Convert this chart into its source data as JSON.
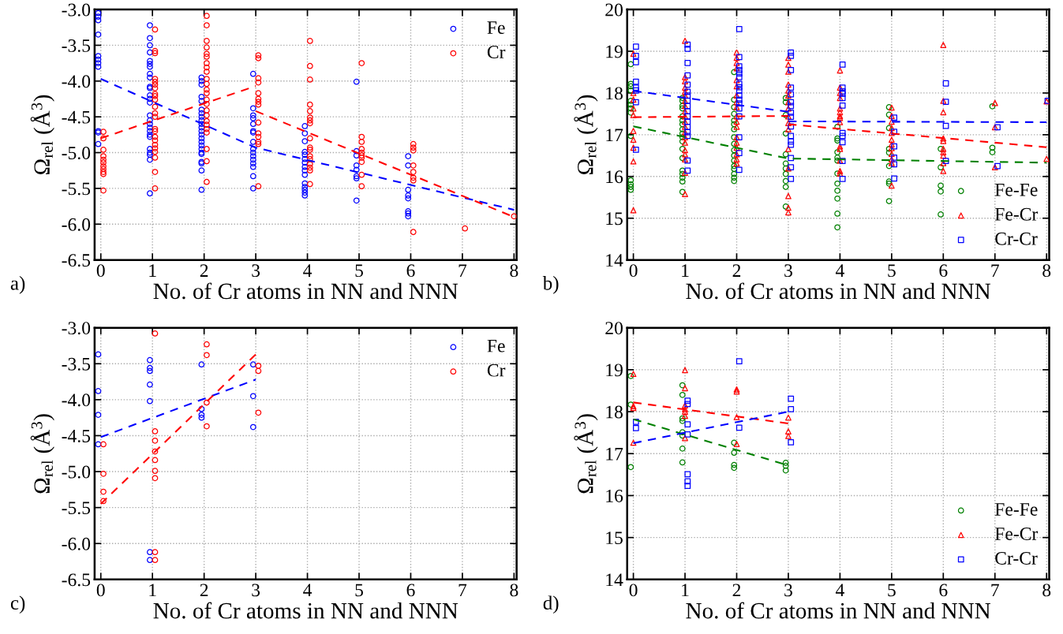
{
  "chart_data": [
    {
      "type": "scatter",
      "xlabel": "No. of Cr atoms in NN and NNN",
      "ylabel": "Ω$_{rel}$ (Å$^{3}$)",
      "annotations": [
        "a)"
      ],
      "xlim": [
        -0.12,
        8.05
      ],
      "xticks": [
        0,
        1,
        2,
        3,
        4,
        5,
        6,
        7,
        8
      ],
      "ylim": [
        -6.5,
        -3.0
      ],
      "yticks": [
        {
          "value": -6.5,
          "label": "-6.5"
        },
        {
          "value": -6.0,
          "label": "-6.0"
        },
        {
          "value": -5.5,
          "label": "-5.5"
        },
        {
          "value": -5.0,
          "label": "-5.0"
        },
        {
          "value": -4.5,
          "label": "-4.5"
        },
        {
          "value": -4.0,
          "label": "-4.0"
        },
        {
          "value": -3.5,
          "label": "-3.5"
        },
        {
          "value": -3.0,
          "label": "-3.0"
        }
      ],
      "grid": true,
      "legend": "top right",
      "series": [
        {
          "name": "Fe",
          "color": "#0000ff",
          "marker": "circle",
          "x": [
            -0.05,
            -0.05,
            -0.05,
            -0.05,
            -0.05,
            -0.05,
            -0.05,
            -0.05,
            -0.05,
            -0.05,
            -0.05,
            0.95,
            0.95,
            0.95,
            0.95,
            0.95,
            0.95,
            0.95,
            0.95,
            0.95,
            0.95,
            0.95,
            0.95,
            0.95,
            0.95,
            0.95,
            0.95,
            0.95,
            0.95,
            0.95,
            0.95,
            0.95,
            0.95,
            0.95,
            0.95,
            0.95,
            0.95,
            1.95,
            1.95,
            1.95,
            1.95,
            1.95,
            1.95,
            1.95,
            1.95,
            1.95,
            1.95,
            1.95,
            1.95,
            1.95,
            1.95,
            1.95,
            1.95,
            1.95,
            1.95,
            1.95,
            1.95,
            1.95,
            1.95,
            1.95,
            2.95,
            2.95,
            2.95,
            2.95,
            2.95,
            2.95,
            2.95,
            2.95,
            2.95,
            2.95,
            2.95,
            2.95,
            2.95,
            2.95,
            2.95,
            2.95,
            3.95,
            3.95,
            3.95,
            3.95,
            3.95,
            3.95,
            3.95,
            3.95,
            3.95,
            3.95,
            3.95,
            3.95,
            3.95,
            3.95,
            3.95,
            4.95,
            4.95,
            4.95,
            4.95,
            4.95,
            4.95,
            4.95,
            4.95,
            5.95,
            5.95,
            5.95,
            5.95,
            5.95,
            5.95,
            5.95,
            5.95
          ],
          "values": [
            -3.05,
            -3.1,
            -3.15,
            -3.35,
            -3.65,
            -3.7,
            -3.75,
            -3.8,
            -4.7,
            -4.72,
            -4.88,
            -3.22,
            -3.4,
            -3.5,
            -3.6,
            -3.72,
            -3.76,
            -3.8,
            -3.9,
            -3.95,
            -4.08,
            -4.1,
            -4.2,
            -4.25,
            -4.3,
            -4.48,
            -4.55,
            -4.6,
            -4.65,
            -4.7,
            -4.75,
            -4.78,
            -4.95,
            -5.0,
            -5.03,
            -5.1,
            -5.57,
            -3.95,
            -4.0,
            -4.05,
            -4.22,
            -4.28,
            -4.4,
            -4.45,
            -4.5,
            -4.55,
            -4.6,
            -4.65,
            -4.7,
            -4.75,
            -4.8,
            -4.85,
            -4.9,
            -4.95,
            -5.0,
            -5.02,
            -5.13,
            -5.15,
            -5.25,
            -5.52,
            -3.9,
            -4.38,
            -4.48,
            -4.52,
            -4.6,
            -4.7,
            -4.72,
            -4.85,
            -4.95,
            -5.0,
            -5.05,
            -5.1,
            -5.15,
            -5.2,
            -5.33,
            -5.5,
            -4.63,
            -4.73,
            -4.84,
            -4.99,
            -5.03,
            -5.09,
            -5.14,
            -5.2,
            -5.25,
            -5.31,
            -5.43,
            -5.48,
            -5.52,
            -5.56,
            -5.6,
            -4.01,
            -4.98,
            -5.04,
            -5.18,
            -5.24,
            -5.33,
            -5.36,
            -5.67,
            -5.05,
            -5.18,
            -5.52,
            -5.6,
            -5.64,
            -5.82,
            -5.85,
            -5.89
          ]
        },
        {
          "name": "Cr",
          "color": "#ff0000",
          "marker": "circle",
          "x": [
            0.05,
            0.05,
            0.05,
            0.05,
            0.05,
            0.05,
            0.05,
            0.05,
            0.05,
            0.05,
            0.05,
            1.05,
            1.05,
            1.05,
            1.05,
            1.05,
            1.05,
            1.05,
            1.05,
            1.05,
            1.05,
            1.05,
            1.05,
            1.05,
            1.05,
            1.05,
            1.05,
            1.05,
            1.05,
            1.05,
            1.05,
            1.05,
            1.05,
            1.05,
            2.05,
            2.05,
            2.05,
            2.05,
            2.05,
            2.05,
            2.05,
            2.05,
            2.05,
            2.05,
            2.05,
            2.05,
            2.05,
            2.05,
            2.05,
            2.05,
            2.05,
            2.05,
            2.05,
            2.05,
            2.05,
            2.05,
            2.05,
            2.05,
            3.05,
            3.05,
            3.05,
            3.05,
            3.05,
            3.05,
            3.05,
            3.05,
            3.05,
            3.05,
            3.05,
            3.05,
            3.05,
            3.05,
            4.05,
            4.05,
            4.05,
            4.05,
            4.05,
            4.05,
            4.05,
            4.05,
            4.05,
            4.05,
            4.05,
            4.05,
            4.05,
            4.05,
            4.05,
            4.05,
            4.05,
            5.05,
            5.05,
            5.05,
            5.05,
            5.05,
            5.05,
            5.05,
            5.05,
            5.05,
            5.05,
            6.05,
            6.05,
            6.05,
            6.05,
            6.05,
            6.05,
            6.05,
            6.05,
            7.05,
            8.0
          ],
          "values": [
            -4.71,
            -4.8,
            -4.96,
            -5.05,
            -5.1,
            -5.14,
            -5.19,
            -5.23,
            -5.27,
            -5.3,
            -5.53,
            -3.28,
            -3.58,
            -3.61,
            -3.97,
            -4.01,
            -4.05,
            -4.1,
            -4.18,
            -4.21,
            -4.26,
            -4.36,
            -4.45,
            -4.5,
            -4.67,
            -4.7,
            -4.78,
            -4.83,
            -4.89,
            -4.94,
            -4.99,
            -5.07,
            -5.27,
            -5.5,
            -3.09,
            -3.22,
            -3.44,
            -3.53,
            -3.62,
            -3.66,
            -3.75,
            -3.81,
            -3.87,
            -3.97,
            -4.04,
            -4.12,
            -4.17,
            -4.26,
            -4.32,
            -4.41,
            -4.48,
            -4.56,
            -4.61,
            -4.67,
            -4.72,
            -4.95,
            -5.12,
            -5.41,
            -3.64,
            -3.68,
            -3.96,
            -4.02,
            -4.17,
            -4.25,
            -4.29,
            -4.33,
            -4.58,
            -4.73,
            -4.78,
            -4.85,
            -4.88,
            -5.47,
            -3.44,
            -3.79,
            -3.98,
            -4.33,
            -4.42,
            -4.51,
            -4.55,
            -4.59,
            -4.8,
            -4.93,
            -4.96,
            -5.05,
            -5.09,
            -5.16,
            -5.21,
            -5.25,
            -5.44,
            -3.75,
            -4.78,
            -4.85,
            -4.95,
            -5.0,
            -5.04,
            -5.07,
            -5.13,
            -5.31,
            -5.47,
            -4.88,
            -4.93,
            -4.97,
            -5.18,
            -5.27,
            -5.35,
            -5.39,
            -6.11,
            -6.06,
            -5.89
          ]
        },
        {
          "type": "line",
          "color": "#0000ff",
          "line_style": "dashed",
          "x": [
            0,
            3,
            8
          ],
          "values": [
            -3.97,
            -4.93,
            -5.8
          ]
        },
        {
          "type": "line",
          "color": "#ff0000",
          "line_style": "dashed",
          "x": [
            0,
            3
          ],
          "values": [
            -4.8,
            -4.07
          ]
        },
        {
          "type": "line",
          "color": "#ff0000",
          "line_style": "dashed",
          "x": [
            3,
            8
          ],
          "values": [
            -4.42,
            -5.9
          ]
        }
      ]
    },
    {
      "type": "scatter",
      "xlabel": "No. of Cr atoms in NN and NNN",
      "ylabel": "Ω$_{rel}$ (Å$^{3}$)",
      "annotations": [
        "b)"
      ],
      "xlim": [
        -0.12,
        8.05
      ],
      "xticks": [
        0,
        1,
        2,
        3,
        4,
        5,
        6,
        7,
        8
      ],
      "ylim": [
        14,
        20
      ],
      "yticks": [
        14,
        15,
        16,
        17,
        18,
        19,
        20
      ],
      "grid": true,
      "legend": "bottom right",
      "series": [
        {
          "name": "Fe-Fe",
          "color": "#008000",
          "marker": "circle",
          "x": [
            -0.05,
            -0.05,
            -0.05,
            -0.05,
            -0.05,
            -0.05,
            -0.05,
            -0.05,
            -0.05,
            -0.05,
            -0.05,
            -0.05,
            -0.05,
            0.95,
            0.95,
            0.95,
            0.95,
            0.95,
            0.95,
            0.95,
            0.95,
            0.95,
            0.95,
            0.95,
            0.95,
            0.95,
            0.95,
            0.95,
            0.95,
            0.95,
            0.95,
            1.95,
            1.95,
            1.95,
            1.95,
            1.95,
            1.95,
            1.95,
            1.95,
            1.95,
            1.95,
            1.95,
            1.95,
            1.95,
            1.95,
            1.95,
            1.95,
            1.95,
            2.95,
            2.95,
            2.95,
            2.95,
            2.95,
            2.95,
            2.95,
            2.95,
            2.95,
            2.95,
            2.95,
            3.95,
            3.95,
            3.95,
            3.95,
            3.95,
            3.95,
            3.95,
            3.95,
            3.95,
            3.95,
            3.95,
            3.95,
            4.95,
            4.95,
            4.95,
            4.95,
            4.95,
            4.95,
            4.95,
            4.95,
            4.95,
            5.95,
            5.95,
            5.95,
            5.95,
            5.95,
            6.95,
            6.95,
            6.95
          ],
          "values": [
            18.69,
            18.22,
            18.16,
            18.06,
            17.81,
            17.72,
            17.63,
            17.53,
            16.97,
            15.91,
            15.81,
            15.75,
            15.68,
            17.88,
            17.81,
            17.69,
            17.63,
            17.44,
            17.34,
            17.25,
            17.13,
            17.03,
            16.94,
            16.84,
            16.66,
            16.44,
            16.14,
            16.06,
            15.97,
            15.88,
            15.63,
            18.5,
            17.84,
            17.66,
            17.5,
            17.34,
            17.25,
            17.13,
            16.94,
            16.78,
            16.63,
            16.5,
            16.38,
            16.25,
            16.18,
            16.06,
            15.97,
            15.89,
            17.88,
            17.78,
            17.47,
            17.03,
            16.53,
            16.31,
            16.19,
            16.06,
            15.89,
            15.75,
            15.28,
            17.19,
            16.91,
            16.86,
            16.58,
            16.45,
            16.38,
            16.07,
            15.83,
            15.66,
            15.47,
            15.11,
            14.78,
            17.66,
            17.48,
            17.16,
            16.66,
            16.57,
            16.25,
            15.88,
            15.83,
            15.41,
            16.66,
            16.22,
            15.78,
            15.64,
            15.09,
            17.68,
            16.69,
            16.58
          ]
        },
        {
          "name": "Fe-Cr",
          "color": "#ff0000",
          "marker": "triangle",
          "x": [
            0,
            0,
            0,
            0,
            0,
            0,
            0,
            0,
            0,
            0,
            1,
            1,
            1,
            1,
            1,
            1,
            1,
            1,
            1,
            1,
            1,
            1,
            1,
            1,
            1,
            1,
            1,
            1,
            1,
            1,
            2,
            2,
            2,
            2,
            2,
            2,
            2,
            2,
            2,
            2,
            2,
            2,
            2,
            2,
            2,
            2,
            2,
            2,
            3,
            3,
            3,
            3,
            3,
            3,
            3,
            3,
            3,
            3,
            3,
            3,
            3,
            3,
            3,
            3,
            4,
            4,
            4,
            4,
            4,
            4,
            4,
            4,
            4,
            4,
            4,
            4,
            4,
            4,
            5,
            5,
            5,
            5,
            5,
            5,
            5,
            5,
            5,
            5,
            5,
            5,
            6,
            6,
            6,
            6,
            6,
            6,
            6,
            6,
            6,
            6,
            7,
            7,
            7,
            8,
            8
          ],
          "values": [
            18.94,
            18.0,
            17.84,
            17.63,
            17.47,
            17.09,
            16.88,
            16.69,
            16.36,
            15.19,
            19.25,
            18.38,
            18.28,
            18.13,
            18.03,
            17.94,
            17.81,
            17.69,
            17.56,
            17.44,
            17.31,
            17.19,
            17.06,
            16.94,
            16.81,
            16.63,
            16.53,
            16.41,
            16.09,
            15.58,
            18.97,
            18.84,
            18.72,
            18.59,
            18.31,
            18.16,
            17.94,
            17.78,
            17.66,
            17.44,
            17.31,
            17.19,
            16.94,
            16.81,
            16.69,
            16.53,
            16.41,
            16.31,
            18.84,
            18.68,
            18.51,
            18.2,
            18.06,
            17.94,
            17.78,
            17.63,
            17.44,
            17.28,
            17.13,
            16.66,
            16.19,
            15.53,
            15.25,
            15.14,
            18.54,
            18.13,
            18.0,
            17.88,
            17.63,
            17.54,
            17.45,
            17.4,
            17.3,
            16.72,
            16.66,
            16.38,
            16.13,
            16.07,
            17.65,
            17.45,
            17.31,
            17.16,
            17.04,
            16.88,
            16.77,
            16.68,
            16.54,
            16.41,
            16.32,
            15.78,
            19.15,
            17.81,
            17.54,
            16.91,
            16.85,
            16.66,
            16.58,
            16.5,
            16.32,
            16.13,
            17.76,
            17.18,
            16.22,
            17.8,
            16.42
          ]
        },
        {
          "name": "Cr-Cr",
          "color": "#0000ff",
          "marker": "square",
          "x": [
            0.05,
            0.05,
            0.05,
            0.05,
            0.05,
            0.05,
            0.05,
            0.05,
            1.05,
            1.05,
            1.05,
            1.05,
            1.05,
            1.05,
            1.05,
            1.05,
            1.05,
            1.05,
            1.05,
            1.05,
            1.05,
            1.05,
            1.05,
            1.05,
            1.05,
            2.05,
            2.05,
            2.05,
            2.05,
            2.05,
            2.05,
            2.05,
            2.05,
            2.05,
            2.05,
            2.05,
            2.05,
            2.05,
            2.05,
            2.05,
            2.05,
            2.05,
            3.05,
            3.05,
            3.05,
            3.05,
            3.05,
            3.05,
            3.05,
            3.05,
            3.05,
            3.05,
            3.05,
            3.05,
            3.05,
            3.05,
            3.05,
            3.05,
            4.05,
            4.05,
            4.05,
            4.05,
            4.05,
            4.05,
            4.05,
            4.05,
            4.05,
            4.05,
            4.05,
            5.05,
            5.05,
            5.05,
            5.05,
            5.05,
            5.05,
            6.05,
            6.05,
            6.05,
            6.05,
            7.05,
            7.05,
            8.02
          ],
          "values": [
            19.11,
            18.89,
            18.74,
            18.27,
            18.13,
            18.06,
            17.78,
            16.64,
            19.16,
            19.06,
            18.72,
            18.42,
            18.2,
            18.03,
            17.94,
            17.81,
            17.69,
            17.56,
            17.44,
            17.31,
            17.19,
            17.06,
            16.97,
            16.38,
            16.14,
            19.53,
            18.86,
            18.64,
            18.55,
            18.47,
            18.38,
            18.22,
            18.14,
            18.06,
            17.94,
            17.84,
            17.75,
            17.63,
            17.44,
            16.94,
            16.56,
            16.16,
            18.97,
            18.89,
            18.55,
            18.13,
            17.97,
            17.78,
            17.69,
            17.53,
            17.43,
            17.2,
            16.97,
            16.84,
            16.76,
            16.44,
            16.22,
            15.94,
            18.68,
            18.13,
            18.04,
            17.98,
            17.88,
            17.7,
            17.04,
            16.97,
            16.82,
            16.37,
            15.94,
            17.41,
            17.07,
            16.72,
            16.45,
            16.29,
            15.95,
            18.23,
            17.79,
            17.21,
            16.37,
            17.18,
            16.25,
            17.81
          ]
        },
        {
          "type": "line",
          "color": "#008000",
          "line_style": "dashed",
          "x": [
            0,
            3,
            8
          ],
          "values": [
            17.2,
            16.43,
            16.33
          ]
        },
        {
          "type": "line",
          "color": "#ff0000",
          "line_style": "dashed",
          "x": [
            0,
            3
          ],
          "values": [
            17.42,
            17.45
          ]
        },
        {
          "type": "line",
          "color": "#ff0000",
          "line_style": "dashed",
          "x": [
            3,
            8
          ],
          "values": [
            17.25,
            16.7
          ]
        },
        {
          "type": "line",
          "color": "#0000ff",
          "line_style": "dashed",
          "x": [
            0,
            3
          ],
          "values": [
            18.05,
            17.55
          ]
        },
        {
          "type": "line",
          "color": "#0000ff",
          "line_style": "dashed",
          "x": [
            3,
            8
          ],
          "values": [
            17.32,
            17.3
          ]
        }
      ]
    },
    {
      "type": "scatter",
      "xlabel": "No. of Cr atoms in NN and NNN",
      "ylabel": "Ω$_{rel}$ (Å$^{3}$)",
      "annotations": [
        "c)"
      ],
      "xlim": [
        -0.12,
        8.05
      ],
      "xticks": [
        0,
        1,
        2,
        3,
        4,
        5,
        6,
        7,
        8
      ],
      "ylim": [
        -6.5,
        -3.0
      ],
      "yticks": [
        {
          "value": -6.5,
          "label": "-6.5"
        },
        {
          "value": -6.0,
          "label": "-6.0"
        },
        {
          "value": -5.5,
          "label": "-5.5"
        },
        {
          "value": -5.0,
          "label": "-5.0"
        },
        {
          "value": -4.5,
          "label": "-4.5"
        },
        {
          "value": -4.0,
          "label": "-4.0"
        },
        {
          "value": -3.5,
          "label": "-3.5"
        },
        {
          "value": -3.0,
          "label": "-3.0"
        }
      ],
      "grid": true,
      "legend": "top right",
      "series": [
        {
          "name": "Fe",
          "color": "#0000ff",
          "marker": "circle",
          "x": [
            -0.05,
            -0.05,
            -0.05,
            -0.05,
            0.95,
            0.95,
            0.95,
            0.95,
            0.95,
            0.95,
            0.95,
            1.95,
            1.95,
            1.95,
            1.95,
            2.95,
            2.95,
            2.95
          ],
          "values": [
            -3.37,
            -3.88,
            -4.21,
            -4.62,
            -3.45,
            -3.56,
            -3.6,
            -3.79,
            -4.02,
            -6.12,
            -6.23,
            -3.51,
            -4.13,
            -4.21,
            -4.25,
            -3.51,
            -3.95,
            -4.38
          ]
        },
        {
          "name": "Cr",
          "color": "#ff0000",
          "marker": "circle",
          "x": [
            0.05,
            0.05,
            0.05,
            0.05,
            1.05,
            1.05,
            1.05,
            1.05,
            1.05,
            1.05,
            1.05,
            1.05,
            1.05,
            2.05,
            2.05,
            2.05,
            2.05,
            3.05,
            3.05,
            3.05
          ],
          "values": [
            -4.62,
            -5.03,
            -5.28,
            -5.41,
            -3.08,
            -4.44,
            -4.57,
            -4.72,
            -4.84,
            -4.99,
            -5.09,
            -6.12,
            -6.23,
            -3.23,
            -3.38,
            -4.04,
            -4.37,
            -3.53,
            -3.6,
            -4.18
          ]
        },
        {
          "type": "line",
          "color": "#0000ff",
          "line_style": "dashed",
          "x": [
            0,
            3
          ],
          "values": [
            -4.52,
            -3.72
          ]
        },
        {
          "type": "line",
          "color": "#ff0000",
          "line_style": "dashed",
          "x": [
            0,
            3
          ],
          "values": [
            -5.45,
            -3.37
          ]
        }
      ]
    },
    {
      "type": "scatter",
      "xlabel": "No. of Cr atoms in NN and NNN",
      "ylabel": "Ω$_{rel}$ (Å$^{3}$)",
      "annotations": [
        "d)"
      ],
      "xlim": [
        -0.12,
        8.05
      ],
      "xticks": [
        0,
        1,
        2,
        3,
        4,
        5,
        6,
        7,
        8
      ],
      "ylim": [
        14,
        20
      ],
      "yticks": [
        14,
        15,
        16,
        17,
        18,
        19,
        20
      ],
      "grid": true,
      "legend": "bottom right",
      "series": [
        {
          "name": "Fe-Fe",
          "color": "#008000",
          "marker": "circle",
          "x": [
            -0.05,
            -0.05,
            -0.05,
            0.95,
            0.95,
            0.95,
            0.95,
            0.95,
            0.95,
            0.95,
            0.95,
            1.95,
            1.95,
            1.95,
            1.95,
            2.95,
            2.95,
            2.95
          ],
          "values": [
            18.85,
            18.17,
            16.68,
            18.63,
            18.4,
            17.84,
            17.78,
            17.51,
            17.43,
            17.12,
            16.79,
            17.26,
            17.02,
            16.73,
            16.66,
            16.78,
            16.71,
            16.6
          ]
        },
        {
          "name": "Fe-Cr",
          "color": "#ff0000",
          "marker": "triangle",
          "x": [
            0,
            0,
            0,
            0,
            1,
            1,
            1,
            1,
            1,
            1,
            1,
            2,
            2,
            2,
            2,
            3,
            3,
            3
          ],
          "values": [
            18.9,
            18.13,
            18.09,
            17.26,
            18.99,
            18.56,
            18.15,
            18.06,
            18.0,
            17.9,
            17.37,
            18.53,
            18.48,
            17.87,
            17.23,
            17.86,
            17.53,
            17.42
          ]
        },
        {
          "name": "Cr-Cr",
          "color": "#0000ff",
          "marker": "square",
          "x": [
            0.05,
            0.05,
            1.05,
            1.05,
            1.05,
            1.05,
            1.05,
            1.05,
            1.05,
            2.05,
            2.05,
            3.05,
            3.05,
            3.05
          ],
          "values": [
            17.76,
            17.61,
            18.26,
            18.18,
            17.7,
            17.46,
            16.51,
            16.34,
            16.23,
            19.2,
            17.62,
            18.31,
            18.06,
            17.27
          ]
        },
        {
          "type": "line",
          "color": "#008000",
          "line_style": "dashed",
          "x": [
            0,
            3
          ],
          "values": [
            17.82,
            16.72
          ]
        },
        {
          "type": "line",
          "color": "#ff0000",
          "line_style": "dashed",
          "x": [
            0,
            3
          ],
          "values": [
            18.22,
            17.72
          ]
        },
        {
          "type": "line",
          "color": "#0000ff",
          "line_style": "dashed",
          "x": [
            0,
            3
          ],
          "values": [
            17.25,
            18.0
          ]
        }
      ]
    }
  ]
}
